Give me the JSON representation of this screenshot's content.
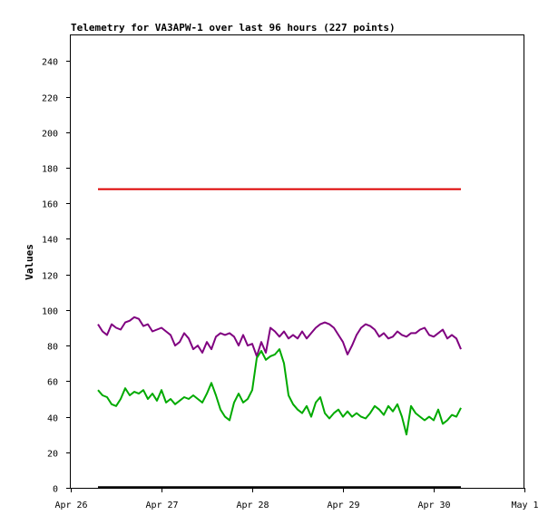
{
  "chart_data": {
    "type": "line",
    "title": "Telemetry for VA3APW-1 over last 96 hours (227 points)",
    "ylabel": "Values",
    "xlabel": "",
    "ylim": [
      0,
      255
    ],
    "xlim": [
      0,
      5
    ],
    "y_ticks": [
      0,
      20,
      40,
      60,
      80,
      100,
      120,
      140,
      160,
      180,
      200,
      220,
      240
    ],
    "x_ticks": [
      {
        "value": 0,
        "label": "Apr 26"
      },
      {
        "value": 1,
        "label": "Apr 27"
      },
      {
        "value": 2,
        "label": "Apr 28"
      },
      {
        "value": 3,
        "label": "Apr 29"
      },
      {
        "value": 4,
        "label": "Apr 30"
      },
      {
        "value": 5,
        "label": "May 1"
      }
    ],
    "grid": false,
    "series": [
      {
        "color": "#dd0000",
        "x": [
          0.3,
          4.3
        ],
        "y": [
          168,
          168
        ]
      },
      {
        "color": "#800080",
        "x": [
          0.3,
          0.35,
          0.4,
          0.45,
          0.5,
          0.55,
          0.6,
          0.65,
          0.7,
          0.75,
          0.8,
          0.85,
          0.9,
          0.95,
          1.0,
          1.05,
          1.1,
          1.15,
          1.2,
          1.25,
          1.3,
          1.35,
          1.4,
          1.45,
          1.5,
          1.55,
          1.6,
          1.65,
          1.7,
          1.75,
          1.8,
          1.85,
          1.9,
          1.95,
          2.0,
          2.05,
          2.1,
          2.15,
          2.2,
          2.25,
          2.3,
          2.35,
          2.4,
          2.45,
          2.5,
          2.55,
          2.6,
          2.65,
          2.7,
          2.75,
          2.8,
          2.85,
          2.9,
          2.95,
          3.0,
          3.05,
          3.1,
          3.15,
          3.2,
          3.25,
          3.3,
          3.35,
          3.4,
          3.45,
          3.5,
          3.55,
          3.6,
          3.65,
          3.7,
          3.75,
          3.8,
          3.85,
          3.9,
          3.95,
          4.0,
          4.05,
          4.1,
          4.15,
          4.2,
          4.25,
          4.3
        ],
        "y": [
          92,
          88,
          86,
          92,
          90,
          89,
          93,
          94,
          96,
          95,
          91,
          92,
          88,
          89,
          90,
          88,
          86,
          80,
          82,
          87,
          84,
          78,
          80,
          76,
          82,
          78,
          85,
          87,
          86,
          87,
          85,
          80,
          86,
          80,
          81,
          74,
          82,
          76,
          90,
          88,
          85,
          88,
          84,
          86,
          84,
          88,
          84,
          87,
          90,
          92,
          93,
          92,
          90,
          86,
          82,
          75,
          80,
          86,
          90,
          92,
          91,
          89,
          85,
          87,
          84,
          85,
          88,
          86,
          85,
          87,
          87,
          89,
          90,
          86,
          85,
          87,
          89,
          84,
          86,
          84,
          78
        ]
      },
      {
        "color": "#00aa00",
        "x": [
          0.3,
          0.35,
          0.4,
          0.45,
          0.5,
          0.55,
          0.6,
          0.65,
          0.7,
          0.75,
          0.8,
          0.85,
          0.9,
          0.95,
          1.0,
          1.05,
          1.1,
          1.15,
          1.2,
          1.25,
          1.3,
          1.35,
          1.4,
          1.45,
          1.5,
          1.55,
          1.6,
          1.65,
          1.7,
          1.75,
          1.8,
          1.85,
          1.9,
          1.95,
          2.0,
          2.05,
          2.1,
          2.15,
          2.2,
          2.25,
          2.3,
          2.35,
          2.4,
          2.45,
          2.5,
          2.55,
          2.6,
          2.65,
          2.7,
          2.75,
          2.8,
          2.85,
          2.9,
          2.95,
          3.0,
          3.05,
          3.1,
          3.15,
          3.2,
          3.25,
          3.3,
          3.35,
          3.4,
          3.45,
          3.5,
          3.55,
          3.6,
          3.65,
          3.7,
          3.75,
          3.8,
          3.85,
          3.9,
          3.95,
          4.0,
          4.05,
          4.1,
          4.15,
          4.2,
          4.25,
          4.3
        ],
        "y": [
          55,
          52,
          51,
          47,
          46,
          50,
          56,
          52,
          54,
          53,
          55,
          50,
          53,
          49,
          55,
          48,
          50,
          47,
          49,
          51,
          50,
          52,
          50,
          48,
          53,
          59,
          52,
          44,
          40,
          38,
          48,
          53,
          48,
          50,
          55,
          73,
          77,
          72,
          74,
          75,
          78,
          70,
          52,
          47,
          44,
          42,
          46,
          40,
          48,
          51,
          42,
          39,
          42,
          44,
          40,
          43,
          40,
          42,
          40,
          39,
          42,
          46,
          44,
          41,
          46,
          43,
          47,
          40,
          30,
          46,
          42,
          40,
          38,
          40,
          38,
          44,
          36,
          38,
          41,
          40,
          45
        ]
      },
      {
        "color": "#000000",
        "x": [
          0.3,
          4.3
        ],
        "y": [
          0.4,
          0.4
        ]
      }
    ]
  }
}
